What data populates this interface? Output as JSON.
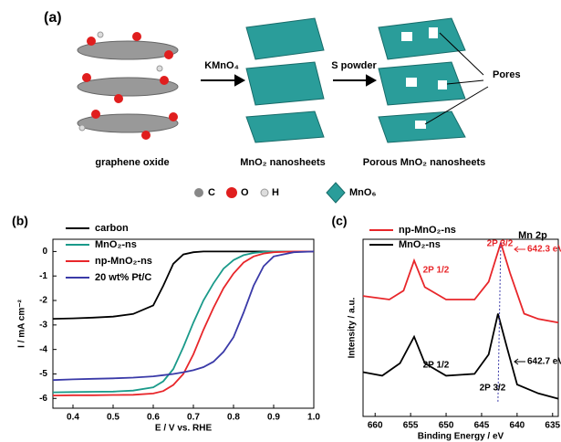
{
  "figure": {
    "panel_a": {
      "label": "(a)",
      "step1": "KMnO₄",
      "step2": "S powder",
      "pores": "Pores",
      "captions": [
        "graphene oxide",
        "MnO₂ nanosheets",
        "Porous MnO₂ nanosheets"
      ],
      "legend": [
        "C",
        "O",
        "H",
        "MnO₆"
      ]
    }
  },
  "chart_data": [
    {
      "type": "line",
      "label": "(b)",
      "xlabel": "E / V vs. RHE",
      "ylabel": "I / mA cm⁻²",
      "x": [
        0.35,
        0.4,
        0.45,
        0.5,
        0.55,
        0.6,
        0.625,
        0.65,
        0.675,
        0.7,
        0.725,
        0.75,
        0.775,
        0.8,
        0.825,
        0.85,
        0.875,
        0.9,
        0.95,
        1.0
      ],
      "xlim": [
        0.35,
        1.0
      ],
      "xticks": [
        0.4,
        0.5,
        0.6,
        0.7,
        0.8,
        0.9,
        {
          "value": 1,
          "label": "1.0"
        }
      ],
      "ylim": [
        -6.4,
        0.5
      ],
      "yticks": [
        0,
        -1,
        -2,
        -3,
        -4,
        -5,
        -6
      ],
      "legend": "upper left",
      "series": [
        {
          "name": "carbon",
          "color": "#000000",
          "values": [
            -2.75,
            -2.73,
            -2.7,
            -2.66,
            -2.55,
            -2.2,
            -1.4,
            -0.5,
            -0.12,
            -0.03,
            0,
            0,
            0,
            0,
            0,
            0,
            0,
            0,
            0,
            0
          ]
        },
        {
          "name": "MnO₂-ns",
          "color": "#1a9a8a",
          "values": [
            -5.75,
            -5.74,
            -5.73,
            -5.72,
            -5.68,
            -5.55,
            -5.3,
            -4.8,
            -3.9,
            -2.9,
            -2.0,
            -1.3,
            -0.7,
            -0.35,
            -0.15,
            -0.06,
            -0.02,
            0,
            0,
            0
          ]
        },
        {
          "name": "np-MnO₂-ns",
          "color": "#e8262a",
          "values": [
            -5.88,
            -5.87,
            -5.87,
            -5.86,
            -5.85,
            -5.8,
            -5.7,
            -5.45,
            -5.0,
            -4.2,
            -3.2,
            -2.3,
            -1.5,
            -0.9,
            -0.45,
            -0.2,
            -0.08,
            -0.03,
            0,
            0
          ]
        },
        {
          "name": "20 wt% Pt/C",
          "color": "#3a3aa8",
          "values": [
            -5.25,
            -5.22,
            -5.2,
            -5.18,
            -5.15,
            -5.1,
            -5.05,
            -5.0,
            -4.93,
            -4.85,
            -4.72,
            -4.5,
            -4.1,
            -3.5,
            -2.5,
            -1.4,
            -0.6,
            -0.2,
            -0.03,
            0
          ]
        }
      ]
    },
    {
      "type": "line",
      "label": "(c)",
      "title": "Mn 2p",
      "xlabel": "Binding Energy / eV",
      "ylabel": "Intensity / a.u.",
      "xlim": [
        661.7,
        634.2
      ],
      "xticks": [
        660,
        655,
        650,
        645,
        640,
        635
      ],
      "ylim": [
        0,
        100
      ],
      "legend": "upper left",
      "series": [
        {
          "name": "np-MnO₂-ns",
          "color": "#e8262a",
          "x": [
            661.7,
            658,
            656,
            654.5,
            653,
            650,
            646,
            644,
            642.3,
            641,
            639,
            637,
            634.2
          ],
          "values": [
            68,
            66,
            71,
            88,
            73,
            66,
            66,
            76,
            98,
            81,
            58,
            55,
            53
          ]
        },
        {
          "name": "MnO₂-ns",
          "color": "#000000",
          "x": [
            661.7,
            659,
            656.5,
            654.5,
            653,
            650,
            646,
            644,
            642.7,
            641.5,
            640,
            637,
            634.2
          ],
          "values": [
            25,
            23,
            30,
            45,
            30,
            23,
            24,
            35,
            58,
            40,
            18,
            13,
            10
          ]
        }
      ],
      "annotations": [
        {
          "text": "2P 1/2",
          "color": "#e8262a"
        },
        {
          "text": "2P 3/2",
          "color": "#e8262a"
        },
        {
          "text": "642.3 eV",
          "color": "#e8262a"
        },
        {
          "text": "2P 1/2",
          "color": "#000000"
        },
        {
          "text": "2P 3/2",
          "color": "#000000"
        },
        {
          "text": "642.7 eV",
          "color": "#000000"
        }
      ]
    }
  ]
}
